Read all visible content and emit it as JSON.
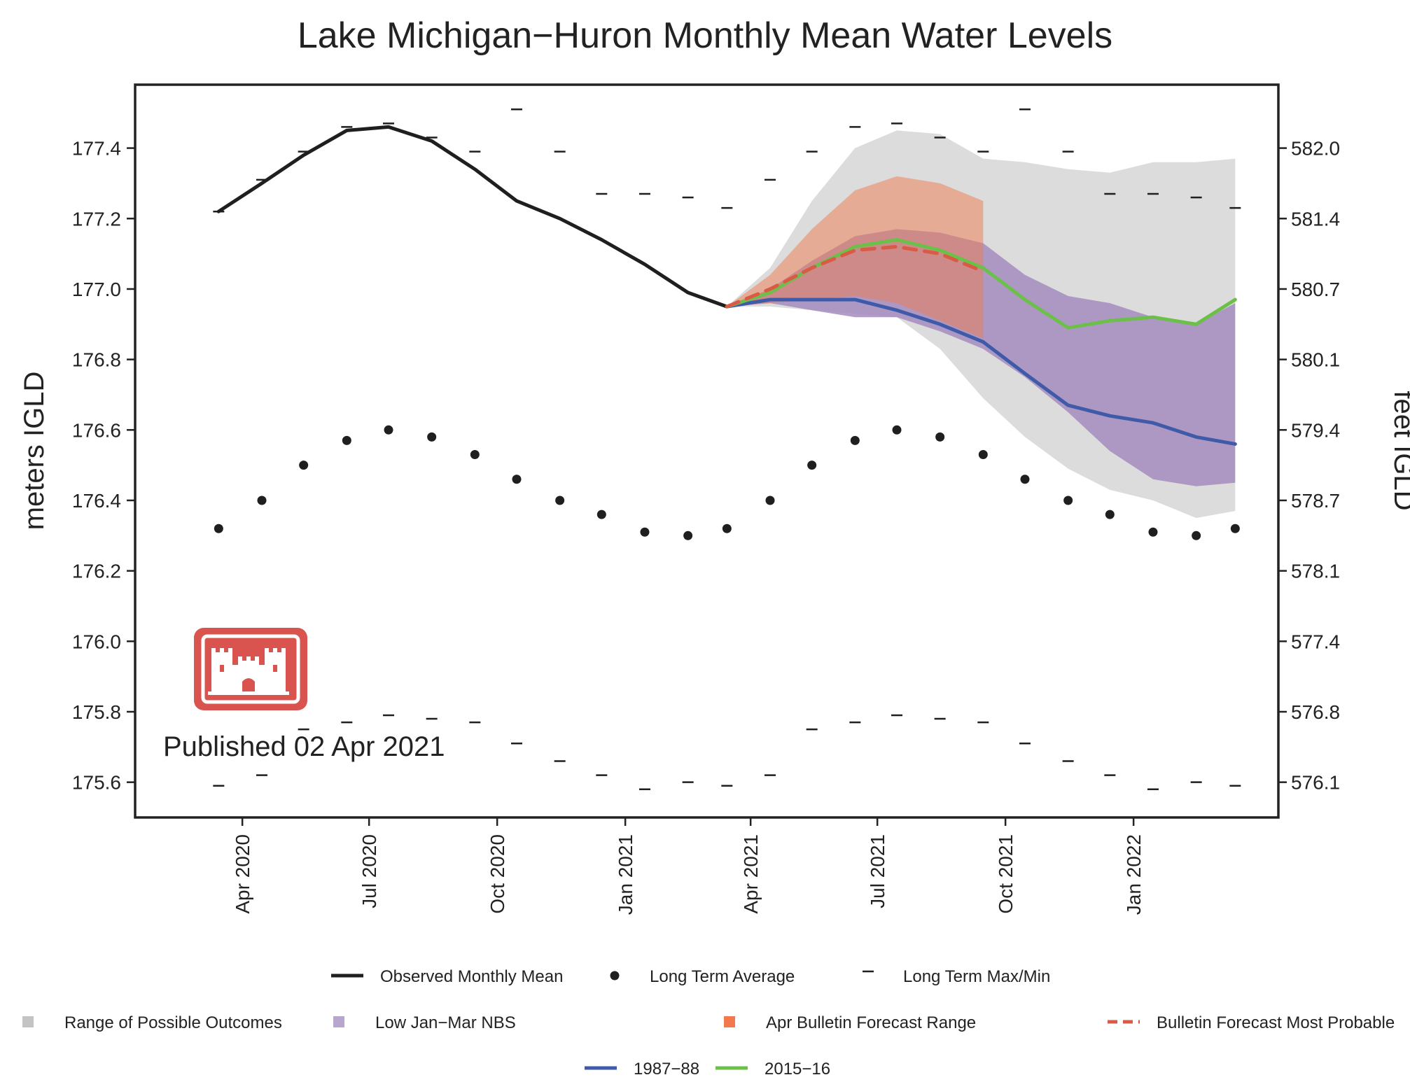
{
  "chart_data": {
    "type": "line",
    "title": "Lake Michigan−Huron Monthly Mean Water Levels",
    "ylabel": "meters IGLD",
    "y2label": "feet IGLD",
    "published": "Published 02 Apr 2021",
    "logo": "usace-castle-icon",
    "ylim": [
      175.5,
      177.58
    ],
    "xlim": [
      "2020-01-15",
      "2022-04-15"
    ],
    "x_ticks": [
      {
        "date": "2020-04-01",
        "label": "Apr 2020"
      },
      {
        "date": "2020-07-01",
        "label": "Jul 2020"
      },
      {
        "date": "2020-10-01",
        "label": "Oct 2020"
      },
      {
        "date": "2021-01-01",
        "label": "Jan 2021"
      },
      {
        "date": "2021-04-01",
        "label": "Apr 2021"
      },
      {
        "date": "2021-07-01",
        "label": "Jul 2021"
      },
      {
        "date": "2021-10-01",
        "label": "Oct 2021"
      },
      {
        "date": "2022-01-01",
        "label": "Jan 2022"
      }
    ],
    "y_ticks": [
      "175.6",
      "175.8",
      "176.0",
      "176.2",
      "176.4",
      "176.6",
      "176.8",
      "177.0",
      "177.2",
      "177.4"
    ],
    "y2_ticks": [
      "576.1",
      "576.8",
      "577.4",
      "578.1",
      "578.7",
      "579.4",
      "580.1",
      "580.7",
      "581.4",
      "582.0"
    ],
    "months": [
      "2020-03",
      "2020-04",
      "2020-05",
      "2020-06",
      "2020-07",
      "2020-08",
      "2020-09",
      "2020-10",
      "2020-11",
      "2020-12",
      "2021-01",
      "2021-02",
      "2021-03",
      "2021-04",
      "2021-05",
      "2021-06",
      "2021-07",
      "2021-08",
      "2021-09",
      "2021-10",
      "2021-11",
      "2021-12",
      "2022-01",
      "2022-02",
      "2022-03"
    ],
    "long_term_average": [
      176.32,
      176.4,
      176.5,
      176.57,
      176.6,
      176.58,
      176.53,
      176.46,
      176.4,
      176.36,
      176.31,
      176.3,
      176.32,
      176.4,
      176.5,
      176.57,
      176.6,
      176.58,
      176.53,
      176.46,
      176.4,
      176.36,
      176.31,
      176.3,
      176.32
    ],
    "long_term_max": [
      177.22,
      177.31,
      177.39,
      177.46,
      177.47,
      177.43,
      177.39,
      177.51,
      177.39,
      177.27,
      177.27,
      177.26,
      177.23,
      177.31,
      177.39,
      177.46,
      177.47,
      177.43,
      177.39,
      177.51,
      177.39,
      177.27,
      177.27,
      177.26,
      177.23
    ],
    "long_term_min": [
      175.59,
      175.62,
      175.75,
      175.77,
      175.79,
      175.78,
      175.77,
      175.71,
      175.66,
      175.62,
      175.58,
      175.6,
      175.59,
      175.62,
      175.75,
      175.77,
      175.79,
      175.78,
      175.77,
      175.71,
      175.66,
      175.62,
      175.58,
      175.6,
      175.59
    ],
    "observed": {
      "months": [
        "2020-03",
        "2020-04",
        "2020-05",
        "2020-06",
        "2020-07",
        "2020-08",
        "2020-09",
        "2020-10",
        "2020-11",
        "2020-12",
        "2021-01",
        "2021-02",
        "2021-03"
      ],
      "values": [
        177.22,
        177.3,
        177.38,
        177.45,
        177.46,
        177.42,
        177.34,
        177.25,
        177.2,
        177.14,
        177.07,
        176.99,
        176.95
      ]
    },
    "range_of_possible_outcomes": {
      "months": [
        "2021-03",
        "2021-04",
        "2021-05",
        "2021-06",
        "2021-07",
        "2021-08",
        "2021-09",
        "2021-10",
        "2021-11",
        "2021-12",
        "2022-01",
        "2022-02",
        "2022-03"
      ],
      "upper": [
        176.95,
        177.06,
        177.25,
        177.4,
        177.45,
        177.44,
        177.37,
        177.36,
        177.34,
        177.33,
        177.36,
        177.36,
        177.37
      ],
      "lower": [
        176.95,
        176.95,
        176.94,
        176.93,
        176.92,
        176.83,
        176.69,
        176.58,
        176.49,
        176.43,
        176.4,
        176.35,
        176.37
      ]
    },
    "low_jan_mar_nbs": {
      "months": [
        "2021-03",
        "2021-04",
        "2021-05",
        "2021-06",
        "2021-07",
        "2021-08",
        "2021-09",
        "2021-10",
        "2021-11",
        "2021-12",
        "2022-01",
        "2022-02",
        "2022-03"
      ],
      "upper": [
        176.95,
        177.0,
        177.08,
        177.15,
        177.17,
        177.16,
        177.13,
        177.04,
        176.98,
        176.96,
        176.92,
        176.9,
        176.96
      ],
      "lower": [
        176.95,
        176.96,
        176.94,
        176.92,
        176.92,
        176.88,
        176.83,
        176.75,
        176.65,
        176.54,
        176.46,
        176.44,
        176.45
      ]
    },
    "apr_bulletin_forecast_range": {
      "months": [
        "2021-03",
        "2021-04",
        "2021-05",
        "2021-06",
        "2021-07",
        "2021-08",
        "2021-09"
      ],
      "upper": [
        176.95,
        177.04,
        177.17,
        177.28,
        177.32,
        177.3,
        177.25
      ],
      "lower": [
        176.95,
        176.96,
        176.97,
        176.98,
        176.96,
        176.91,
        176.86
      ]
    },
    "series": [
      {
        "name": "Bulletin Forecast Most Probable",
        "months": [
          "2021-03",
          "2021-04",
          "2021-05",
          "2021-06",
          "2021-07",
          "2021-08",
          "2021-09"
        ],
        "values": [
          176.95,
          177.0,
          177.06,
          177.11,
          177.12,
          177.1,
          177.05
        ]
      },
      {
        "name": "1987−88",
        "months": [
          "2021-03",
          "2021-04",
          "2021-05",
          "2021-06",
          "2021-07",
          "2021-08",
          "2021-09",
          "2021-10",
          "2021-11",
          "2021-12",
          "2022-01",
          "2022-02",
          "2022-03"
        ],
        "values": [
          176.95,
          176.97,
          176.97,
          176.97,
          176.94,
          176.9,
          176.85,
          176.76,
          176.67,
          176.64,
          176.62,
          176.58,
          176.56
        ]
      },
      {
        "name": "2015−16",
        "months": [
          "2021-03",
          "2021-04",
          "2021-05",
          "2021-06",
          "2021-07",
          "2021-08",
          "2021-09",
          "2021-10",
          "2021-11",
          "2021-12",
          "2022-01",
          "2022-02",
          "2022-03"
        ],
        "values": [
          176.95,
          176.99,
          177.06,
          177.12,
          177.14,
          177.11,
          177.06,
          176.97,
          176.89,
          176.91,
          176.92,
          176.9,
          176.97
        ]
      }
    ],
    "legend": {
      "placement": "bottom",
      "rows": [
        [
          {
            "key": "observed",
            "label": "Observed Monthly Mean"
          },
          {
            "key": "avg",
            "label": "Long Term Average"
          },
          {
            "key": "maxmin",
            "label": "Long Term Max/Min"
          }
        ],
        [
          {
            "key": "range",
            "label": "Range of Possible Outcomes"
          },
          {
            "key": "nbs",
            "label": "Low Jan−Mar NBS"
          },
          {
            "key": "bulletin_range",
            "label": "Apr Bulletin Forecast Range"
          },
          {
            "key": "most_probable",
            "label": "Bulletin Forecast Most Probable"
          }
        ],
        [
          {
            "key": "s1987",
            "label": "1987−88"
          },
          {
            "key": "s2015",
            "label": "2015−16"
          }
        ]
      ]
    },
    "colors": {
      "observed": "#1f1f1f",
      "points": "#1f1f1f",
      "range": "#dcdcdc",
      "nbs": "#a48cc0",
      "bulletin_range": "#f07a4e",
      "most_probable": "#d95a45",
      "s1987": "#3f5aa8",
      "s2015": "#6cc04a",
      "logo": "#d9534f"
    }
  }
}
